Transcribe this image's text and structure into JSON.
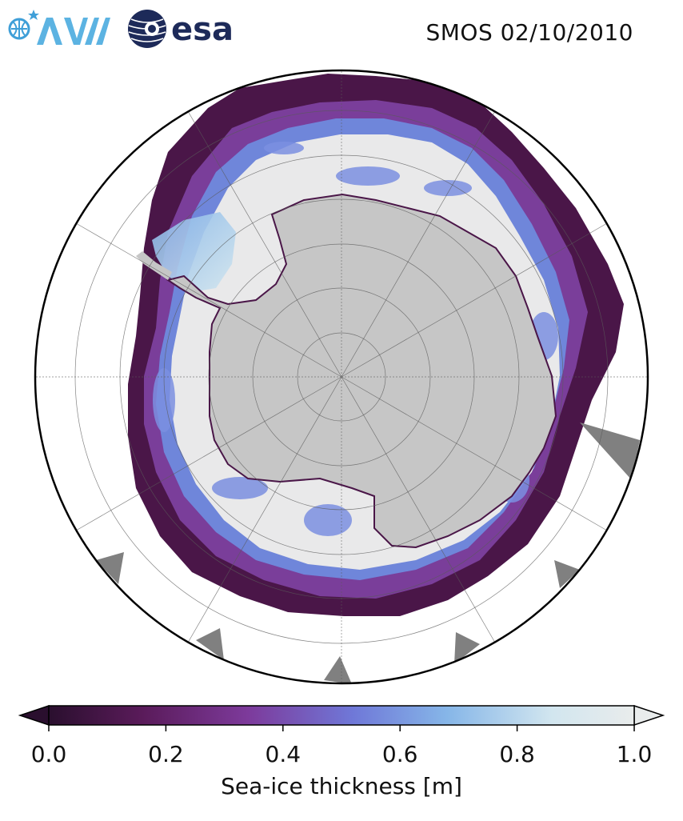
{
  "header": {
    "title": "SMOS 02/10/2010",
    "logo_left": "AWI",
    "logo_right": "esa"
  },
  "map": {
    "projection": "south-polar-stereographic",
    "colors": {
      "land": "#c6c6c6",
      "thick_ice": "#e9e9ea",
      "no_data": "#808080",
      "grid": "#5a5a5a"
    }
  },
  "colorbar": {
    "label": "Sea-ice thickness [m]",
    "range": [
      0.0,
      1.0
    ],
    "extend": "both",
    "ticks": [
      "0.0",
      "0.2",
      "0.4",
      "0.6",
      "0.8",
      "1.0"
    ],
    "colormap_stops": [
      "#2a0f2e",
      "#5a1b5a",
      "#7d3a9b",
      "#6f78d8",
      "#86b6e8",
      "#d2e6ef",
      "#e9ecec"
    ]
  }
}
